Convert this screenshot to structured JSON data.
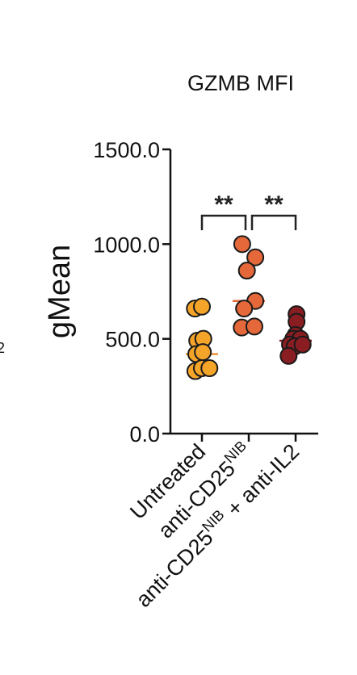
{
  "chart_data": {
    "type": "scatter",
    "title": "GZMB MFI",
    "ylabel": "gMean",
    "xlabel": "",
    "ylim": [
      0,
      1500
    ],
    "yticks": [
      {
        "value": 0,
        "label": "0.0"
      },
      {
        "value": 500,
        "label": "500.0"
      },
      {
        "value": 1000,
        "label": "1000.0"
      },
      {
        "value": 1500,
        "label": "1500.0"
      }
    ],
    "categories": [
      {
        "text": "Untreated",
        "sup": "",
        "suffix": ""
      },
      {
        "text": "anti-CD25",
        "sup": "NIB",
        "suffix": ""
      },
      {
        "text": "anti-CD25",
        "sup": "NIB",
        "suffix": " + anti-IL2"
      }
    ],
    "series": [
      {
        "color": "#f5a42a",
        "mean_color": "#f0923a",
        "mean": 420,
        "points": [
          {
            "x": -0.15,
            "y": 660
          },
          {
            "x": 0.0,
            "y": 670
          },
          {
            "x": -0.1,
            "y": 490
          },
          {
            "x": 0.03,
            "y": 500
          },
          {
            "x": -0.12,
            "y": 420
          },
          {
            "x": 0.02,
            "y": 430
          },
          {
            "x": -0.14,
            "y": 330
          },
          {
            "x": 0.0,
            "y": 345
          },
          {
            "x": 0.16,
            "y": 345
          }
        ]
      },
      {
        "color": "#e4683a",
        "mean_color": "#e4683a",
        "mean": 700,
        "points": [
          {
            "x": -0.14,
            "y": 1000
          },
          {
            "x": 0.14,
            "y": 930
          },
          {
            "x": -0.04,
            "y": 860
          },
          {
            "x": 0.14,
            "y": 700
          },
          {
            "x": -0.1,
            "y": 660
          },
          {
            "x": -0.15,
            "y": 560
          },
          {
            "x": 0.12,
            "y": 565
          }
        ]
      },
      {
        "color": "#8a1d22",
        "mean_color": "#8a1d22",
        "mean": 490,
        "points": [
          {
            "x": 0.02,
            "y": 630
          },
          {
            "x": 0.02,
            "y": 590
          },
          {
            "x": 0.0,
            "y": 520
          },
          {
            "x": -0.05,
            "y": 500
          },
          {
            "x": 0.1,
            "y": 500
          },
          {
            "x": -0.12,
            "y": 470
          },
          {
            "x": -0.02,
            "y": 460
          },
          {
            "x": 0.15,
            "y": 470
          },
          {
            "x": -0.15,
            "y": 410
          }
        ]
      }
    ],
    "significance": [
      {
        "from": 0,
        "to": 1,
        "label": "**",
        "y": 1150
      },
      {
        "from": 1,
        "to": 2,
        "label": "**",
        "y": 1150
      }
    ]
  },
  "edge_text": "2"
}
